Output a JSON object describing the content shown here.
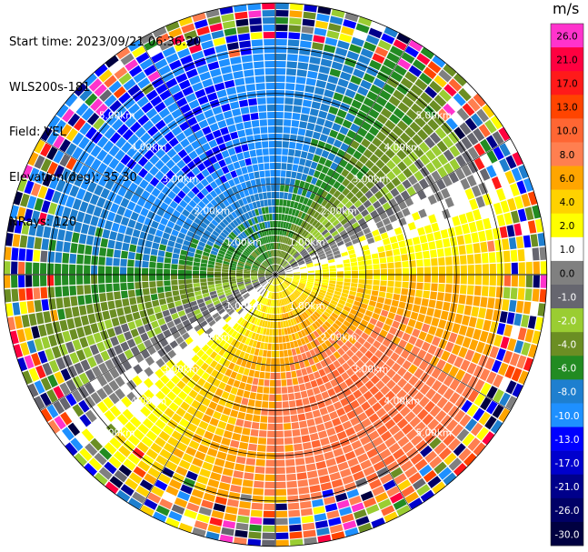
{
  "meta": {
    "start_time": "Start time: 2023/09/21 06:36:20",
    "instrument": "WLS200s-181",
    "field": "Field: VEL",
    "elevation": "Elevation(deg): 35.30",
    "nrays": "NRays: 120"
  },
  "chart_data": {
    "type": "heatmap",
    "projection": "polar-ppi",
    "title": "",
    "field": "VEL",
    "units": "m/s",
    "nrays": 120,
    "elevation_deg": 35.3,
    "range_rings_km": [
      1.0,
      2.0,
      3.0,
      4.0,
      5.0
    ],
    "ring_labels": [
      "1.00km",
      "2.00km",
      "3.00km",
      "4.00km",
      "5.00km"
    ],
    "max_range_km": 6.0,
    "colorbar": {
      "title": "m/s",
      "ticks": [
        "26.0",
        "21.0",
        "17.0",
        "13.0",
        "10.0",
        "8.0",
        "6.0",
        "4.0",
        "2.0",
        "1.0",
        "0.0",
        "-1.0",
        "-2.0",
        "-4.0",
        "-6.0",
        "-8.0",
        "-10.0",
        "-13.0",
        "-17.0",
        "-21.0",
        "-26.0",
        "-30.0"
      ],
      "colors": [
        "#ff33cc",
        "#ff0040",
        "#ff1a1a",
        "#ff4400",
        "#ff6633",
        "#ff7f50",
        "#ffa500",
        "#ffd200",
        "#ffff00",
        "#ffffff",
        "#808080",
        "#66666f",
        "#9acd32",
        "#6b8e23",
        "#228b22",
        "#1e7fcf",
        "#1e90ff",
        "#0000ff",
        "#0000cd",
        "#00008b",
        "#000066",
        "#000040"
      ]
    },
    "wind_pattern": {
      "dominant_positive_direction_deg": 150,
      "dominant_negative_direction_deg": 330,
      "max_positive_ms": 10.0,
      "max_negative_ms": -10.0,
      "noise_begins_km": 4.7
    }
  }
}
